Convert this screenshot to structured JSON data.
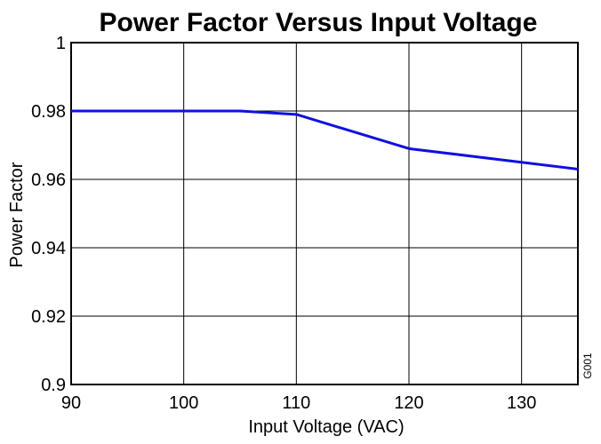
{
  "chart_data": {
    "type": "line",
    "title": "Power Factor Versus Input Voltage",
    "xlabel": "Input Voltage (VAC)",
    "ylabel": "Power Factor",
    "xlim": [
      90,
      135
    ],
    "ylim": [
      0.9,
      1.0
    ],
    "x_ticks": [
      90,
      100,
      110,
      120,
      130
    ],
    "y_ticks": [
      0.9,
      0.92,
      0.94,
      0.96,
      0.98,
      1.0
    ],
    "x_tick_labels": [
      "90",
      "100",
      "110",
      "120",
      "130"
    ],
    "y_tick_labels": [
      "0.9",
      "0.92",
      "0.94",
      "0.96",
      "0.98",
      "1"
    ],
    "grid": true,
    "series": [
      {
        "color": "#1010e0",
        "x": [
          90,
          105,
          110,
          120,
          135
        ],
        "y": [
          0.98,
          0.98,
          0.979,
          0.969,
          0.963
        ]
      }
    ],
    "figure_code": "G001"
  }
}
